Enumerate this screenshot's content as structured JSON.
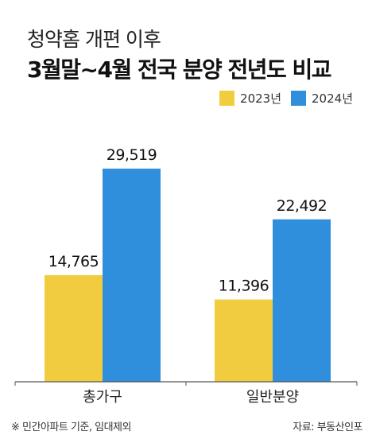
{
  "subtitle": "청약홈 개편 이후",
  "title": "3월말~4월 전국 분양 전년도 비교",
  "footnote": "※ 민간아파트 기준, 임대제외",
  "source": "자료: 부동산인포",
  "chart_data": {
    "type": "bar",
    "categories": [
      "총가구",
      "일반분양"
    ],
    "series": [
      {
        "name": "2023년",
        "color": "#f2cc3f",
        "values": [
          14765,
          11396
        ],
        "labels": [
          "14,765",
          "11,396"
        ]
      },
      {
        "name": "2024년",
        "color": "#2f8fdc",
        "values": [
          29519,
          22492
        ],
        "labels": [
          "29,519",
          "22,492"
        ]
      }
    ],
    "ylim": [
      0,
      40000
    ],
    "grid": false,
    "legend_position": "top-right"
  }
}
